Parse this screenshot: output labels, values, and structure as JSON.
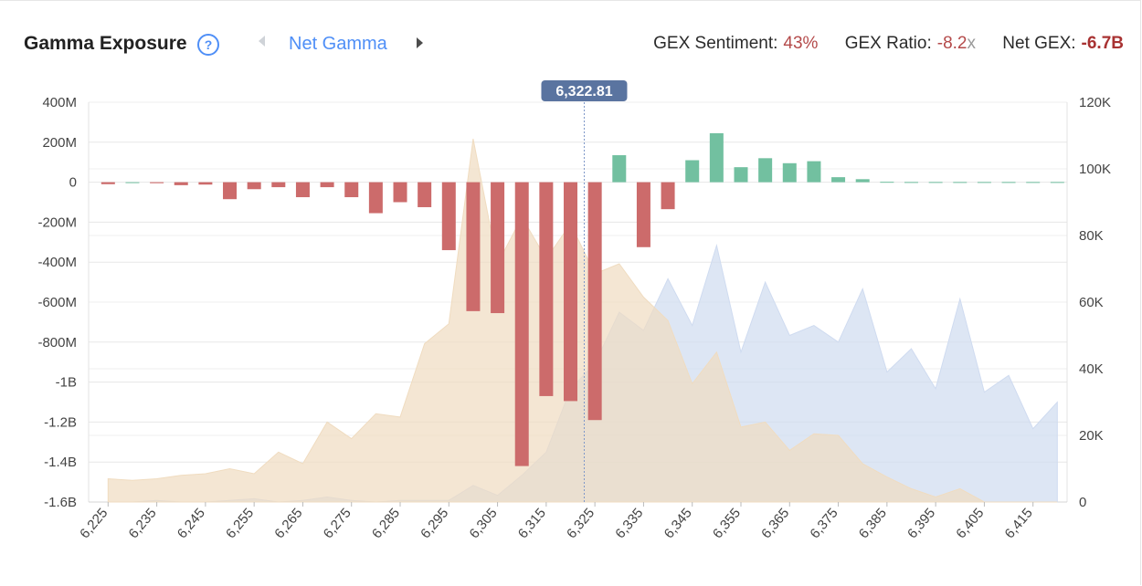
{
  "header": {
    "title": "Gamma Exposure",
    "help_glyph": "?",
    "view_label": "Net Gamma",
    "stats": [
      {
        "label": "GEX Sentiment:",
        "value": "43%",
        "suffix": ""
      },
      {
        "label": "GEX Ratio:",
        "value": "-8.2",
        "suffix": "x"
      },
      {
        "label": "Net GEX:",
        "value": "-6.7B",
        "suffix": ""
      }
    ]
  },
  "icons": {
    "help": "help-circle-icon",
    "prev": "chevron-left-icon",
    "next": "chevron-right-icon"
  },
  "colors": {
    "negative_bar": "#cc6b6b",
    "positive_bar": "#72c0a0",
    "calls_area": "#f0dcc0",
    "puts_area": "#cfdbf0",
    "price_badge": "#5a74a0",
    "price_line": "#7d97c8",
    "stat_negative": "#b44a4a"
  },
  "chart_data": {
    "type": "bar",
    "current_price_label": "6,322.81",
    "current_price": 6322.81,
    "x_tick_labels": [
      "6,225",
      "6,235",
      "6,245",
      "6,255",
      "6,265",
      "6,275",
      "6,285",
      "6,295",
      "6,305",
      "6,315",
      "6,325",
      "6,335",
      "6,345",
      "6,355",
      "6,365",
      "6,375",
      "6,385",
      "6,395",
      "6,405",
      "6,415"
    ],
    "left_axis": {
      "ticks": [
        "400M",
        "200M",
        "0",
        "-200M",
        "-400M",
        "-600M",
        "-800M",
        "-1B",
        "-1.2B",
        "-1.4B",
        "-1.6B"
      ],
      "ylim": [
        -1600,
        400
      ],
      "unit": "M"
    },
    "right_axis": {
      "ticks": [
        "120K",
        "100K",
        "80K",
        "60K",
        "40K",
        "20K",
        "0"
      ],
      "ylim": [
        0,
        120000
      ]
    },
    "strikes": [
      6225,
      6230,
      6235,
      6240,
      6245,
      6250,
      6255,
      6260,
      6265,
      6270,
      6275,
      6280,
      6285,
      6290,
      6295,
      6300,
      6305,
      6310,
      6315,
      6320,
      6325,
      6330,
      6335,
      6340,
      6345,
      6350,
      6355,
      6360,
      6365,
      6370,
      6375,
      6380,
      6385,
      6390,
      6395,
      6400,
      6405,
      6410,
      6415,
      6420
    ],
    "net_gamma_m": [
      -10,
      0,
      -5,
      -15,
      -12,
      -85,
      -35,
      -25,
      -75,
      -25,
      -75,
      -155,
      -100,
      -125,
      -340,
      -645,
      -655,
      -1420,
      -1070,
      -1095,
      -1190,
      135,
      -325,
      -135,
      110,
      245,
      75,
      120,
      95,
      105,
      25,
      15,
      2,
      1,
      1,
      1,
      1,
      1,
      1,
      1
    ],
    "series": [
      {
        "name_hidden": "calls_area",
        "x": [
          6225,
          6230,
          6235,
          6240,
          6245,
          6250,
          6255,
          6260,
          6265,
          6270,
          6275,
          6280,
          6285,
          6290,
          6295,
          6300,
          6305,
          6310,
          6315,
          6320,
          6325,
          6330,
          6335,
          6340,
          6345,
          6350,
          6355,
          6360,
          6365,
          6370,
          6375,
          6380,
          6385,
          6390,
          6395,
          6400,
          6405,
          6410,
          6415,
          6420
        ],
        "values": [
          7000,
          6500,
          7000,
          8000,
          8500,
          10000,
          8500,
          15000,
          11500,
          24000,
          19000,
          26500,
          25500,
          47500,
          53500,
          109000,
          71500,
          85500,
          73000,
          83500,
          68500,
          71500,
          61500,
          54500,
          35500,
          45000,
          22500,
          24000,
          15500,
          20500,
          20000,
          11500,
          7500,
          4000,
          1500,
          4000,
          0,
          0,
          0,
          0
        ]
      },
      {
        "name_hidden": "puts_area",
        "x": [
          6225,
          6230,
          6235,
          6240,
          6245,
          6250,
          6255,
          6260,
          6265,
          6270,
          6275,
          6280,
          6285,
          6290,
          6295,
          6300,
          6305,
          6310,
          6315,
          6320,
          6325,
          6330,
          6335,
          6340,
          6345,
          6350,
          6355,
          6360,
          6365,
          6370,
          6375,
          6380,
          6385,
          6390,
          6395,
          6400,
          6405,
          6410,
          6415,
          6420
        ],
        "values": [
          0,
          0,
          500,
          0,
          0,
          500,
          1000,
          0,
          500,
          1500,
          500,
          0,
          500,
          500,
          500,
          5000,
          2000,
          8000,
          15000,
          34000,
          41500,
          57000,
          51500,
          67000,
          53000,
          77000,
          45000,
          66000,
          50000,
          53000,
          48000,
          64000,
          39000,
          46000,
          34000,
          61000,
          33000,
          38000,
          22000,
          30000
        ]
      }
    ]
  }
}
